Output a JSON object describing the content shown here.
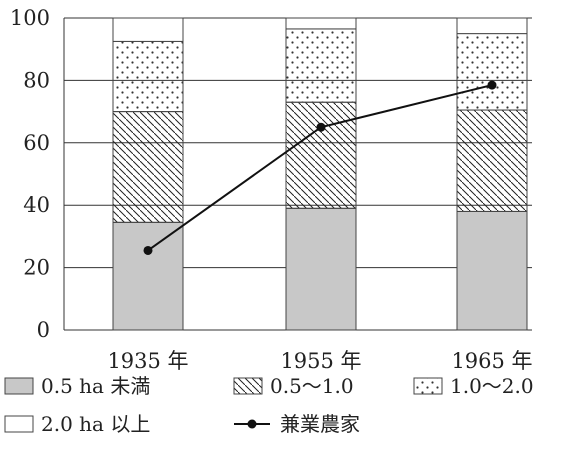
{
  "chart_data": {
    "type": "bar",
    "subtype": "stacked",
    "categories": [
      "1935 年",
      "1955 年",
      "1965 年"
    ],
    "ylim": [
      0,
      100
    ],
    "yticks": [
      0,
      20,
      40,
      60,
      80,
      100
    ],
    "grid": true,
    "legend_position": "bottom",
    "series": [
      {
        "name": "0.5 ha 未満",
        "values": [
          34.5,
          39.0,
          38.0
        ],
        "color": "#c8c8c8",
        "pattern": "solid"
      },
      {
        "name": "0.5～1.0",
        "values": [
          35.5,
          34.0,
          32.5
        ],
        "color": "#ffffff",
        "pattern": "hatch"
      },
      {
        "name": "1.0～2.0",
        "values": [
          22.5,
          23.5,
          24.5
        ],
        "color": "#ffffff",
        "pattern": "dots"
      },
      {
        "name": "2.0 ha 以上",
        "values": [
          7.5,
          3.5,
          5.0
        ],
        "color": "#ffffff",
        "pattern": "none"
      }
    ],
    "line": {
      "name": "兼業農家",
      "values": [
        25.5,
        65.0,
        78.5
      ],
      "color": "#111111"
    }
  }
}
